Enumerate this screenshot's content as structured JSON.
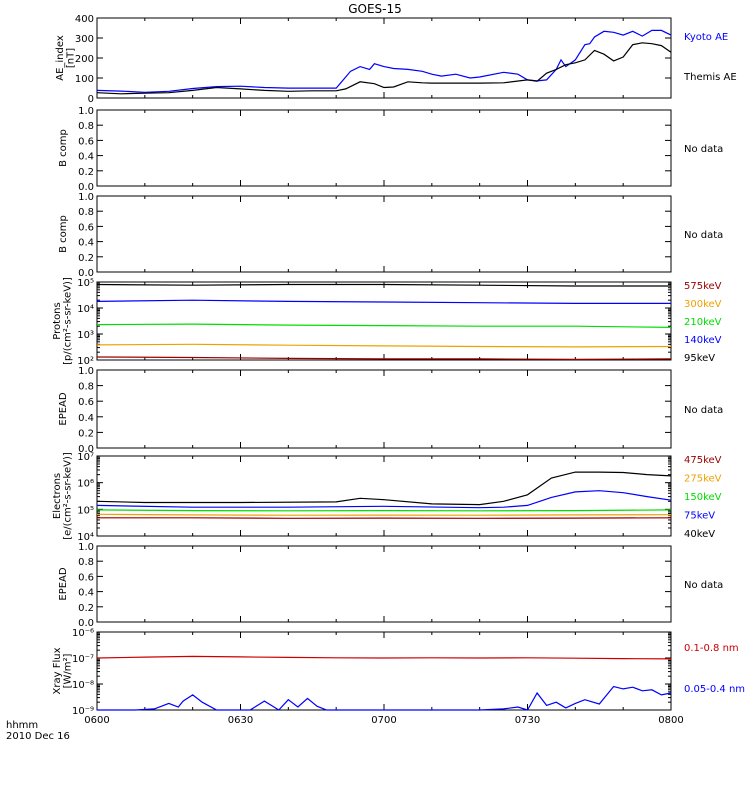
{
  "title": "GOES-15",
  "time_label": "hhmm",
  "date_label": "2010 Dec 16",
  "x_ticks": [
    "0600",
    "0630",
    "0700",
    "0730",
    "0800"
  ],
  "colors": {
    "black": "#000000",
    "blue": "#0000ff",
    "green": "#00dd00",
    "orange": "#eea200",
    "dark_red": "#990000",
    "red": "#cc0000"
  },
  "chart_data": [
    {
      "type": "line",
      "id": "ae",
      "ylabel": "AE_index [nT]",
      "ylim": [
        0,
        420
      ],
      "yscale": "linear",
      "yticks": [
        "0",
        "100",
        "200",
        "300",
        "400"
      ],
      "legend": [
        {
          "text": "Kyoto AE",
          "color": "blue"
        },
        {
          "text": "Themis AE",
          "color": "black"
        }
      ],
      "series": [
        {
          "name": "Kyoto AE",
          "color": "blue",
          "x": [
            0,
            5,
            10,
            15,
            20,
            25,
            30,
            35,
            40,
            45,
            50,
            52,
            53,
            55,
            57,
            58,
            60,
            62,
            65,
            68,
            70,
            72,
            75,
            78,
            80,
            85,
            88,
            90,
            92,
            94,
            96,
            97,
            98,
            100,
            102,
            103,
            104,
            106,
            108,
            110,
            112,
            114,
            116,
            118,
            120
          ],
          "y": [
            40,
            36,
            30,
            35,
            50,
            60,
            62,
            55,
            52,
            52,
            52,
            110,
            140,
            165,
            150,
            180,
            165,
            155,
            150,
            140,
            125,
            115,
            125,
            105,
            110,
            135,
            125,
            95,
            90,
            95,
            150,
            200,
            165,
            200,
            280,
            285,
            320,
            350,
            345,
            330,
            350,
            325,
            355,
            355,
            330
          ]
        },
        {
          "name": "Themis AE",
          "color": "black",
          "x": [
            0,
            5,
            10,
            15,
            20,
            25,
            30,
            35,
            40,
            45,
            50,
            52,
            55,
            58,
            60,
            62,
            65,
            68,
            70,
            75,
            80,
            85,
            90,
            92,
            94,
            96,
            98,
            100,
            102,
            104,
            106,
            108,
            110,
            112,
            114,
            116,
            118,
            120
          ],
          "y": [
            28,
            22,
            25,
            28,
            40,
            55,
            48,
            40,
            35,
            38,
            38,
            48,
            85,
            75,
            55,
            58,
            85,
            80,
            78,
            78,
            78,
            80,
            95,
            88,
            130,
            150,
            175,
            185,
            200,
            250,
            230,
            195,
            215,
            280,
            290,
            285,
            275,
            240
          ]
        }
      ]
    },
    {
      "type": "line",
      "id": "bcomp1",
      "ylabel": "B comp",
      "ylim": [
        0,
        1
      ],
      "yticks": [
        "0.0",
        "0.2",
        "0.4",
        "0.6",
        "0.8",
        "1.0"
      ],
      "legend": [
        {
          "text": "No data",
          "color": "black"
        }
      ],
      "series": []
    },
    {
      "type": "line",
      "id": "bcomp2",
      "ylabel": "B comp",
      "ylim": [
        0,
        1
      ],
      "yticks": [
        "0.0",
        "0.2",
        "0.4",
        "0.6",
        "0.8",
        "1.0"
      ],
      "legend": [
        {
          "text": "No data",
          "color": "black"
        }
      ],
      "series": []
    },
    {
      "type": "line",
      "id": "protons",
      "ylabel": "Protons [p/(cm²-s-sr-keV)]",
      "yscale": "log",
      "ylim": [
        100,
        100000
      ],
      "yticks": [
        "10²",
        "10³",
        "10⁴",
        "10⁵"
      ],
      "legend": [
        {
          "text": "575keV",
          "color": "dark_red"
        },
        {
          "text": "300keV",
          "color": "orange"
        },
        {
          "text": "210keV",
          "color": "green"
        },
        {
          "text": "140keV",
          "color": "blue"
        },
        {
          "text": "95keV",
          "color": "black"
        }
      ],
      "series": [
        {
          "name": "95keV",
          "color": "black",
          "x": [
            0,
            20,
            40,
            60,
            80,
            100,
            120
          ],
          "y": [
            80000,
            75000,
            80000,
            80000,
            75000,
            70000,
            70000
          ]
        },
        {
          "name": "140keV",
          "color": "blue",
          "x": [
            0,
            20,
            40,
            60,
            80,
            100,
            120
          ],
          "y": [
            18000,
            20000,
            18000,
            17000,
            16000,
            15000,
            15000
          ]
        },
        {
          "name": "210keV",
          "color": "green",
          "x": [
            0,
            20,
            40,
            60,
            80,
            100,
            120
          ],
          "y": [
            2300,
            2400,
            2200,
            2100,
            2000,
            2000,
            1800
          ]
        },
        {
          "name": "300keV",
          "color": "orange",
          "x": [
            0,
            20,
            40,
            60,
            80,
            100,
            120
          ],
          "y": [
            380,
            400,
            370,
            350,
            330,
            320,
            330
          ]
        },
        {
          "name": "575keV",
          "color": "dark_red",
          "x": [
            0,
            20,
            40,
            60,
            80,
            100,
            120
          ],
          "y": [
            130,
            125,
            115,
            110,
            110,
            105,
            110
          ]
        }
      ]
    },
    {
      "type": "line",
      "id": "epead1",
      "ylabel": "EPEAD",
      "ylim": [
        0,
        1
      ],
      "yticks": [
        "0.0",
        "0.2",
        "0.4",
        "0.6",
        "0.8",
        "1.0"
      ],
      "legend": [
        {
          "text": "No data",
          "color": "black"
        }
      ],
      "series": []
    },
    {
      "type": "line",
      "id": "electrons",
      "ylabel": "Electrons [e/(cm²-s-sr-keV)]",
      "yscale": "log",
      "ylim": [
        10000,
        10000000
      ],
      "yticks": [
        "10⁴",
        "10⁵",
        "10⁶",
        "10⁷"
      ],
      "legend": [
        {
          "text": "475keV",
          "color": "dark_red"
        },
        {
          "text": "275keV",
          "color": "orange"
        },
        {
          "text": "150keV",
          "color": "green"
        },
        {
          "text": "75keV",
          "color": "blue"
        },
        {
          "text": "40keV",
          "color": "black"
        }
      ],
      "series": [
        {
          "name": "40keV",
          "color": "black",
          "x": [
            0,
            10,
            30,
            50,
            55,
            60,
            70,
            80,
            85,
            90,
            95,
            100,
            105,
            110,
            115,
            120
          ],
          "y": [
            200000,
            180000,
            180000,
            190000,
            260000,
            230000,
            160000,
            150000,
            200000,
            350000,
            1500000,
            2500000,
            2500000,
            2400000,
            2000000,
            1800000
          ]
        },
        {
          "name": "75keV",
          "color": "blue",
          "x": [
            0,
            20,
            40,
            60,
            80,
            85,
            90,
            95,
            100,
            105,
            110,
            115,
            120
          ],
          "y": [
            140000,
            120000,
            120000,
            130000,
            115000,
            120000,
            140000,
            280000,
            450000,
            500000,
            420000,
            300000,
            220000
          ]
        },
        {
          "name": "150keV",
          "color": "green",
          "x": [
            0,
            20,
            40,
            60,
            80,
            100,
            120
          ],
          "y": [
            95000,
            90000,
            88000,
            90000,
            88000,
            90000,
            95000
          ]
        },
        {
          "name": "275keV",
          "color": "orange",
          "x": [
            0,
            20,
            40,
            60,
            80,
            100,
            120
          ],
          "y": [
            65000,
            62000,
            60000,
            61000,
            60000,
            62000,
            63000
          ]
        },
        {
          "name": "475keV",
          "color": "dark_red",
          "x": [
            0,
            20,
            40,
            60,
            80,
            100,
            120
          ],
          "y": [
            48000,
            48000,
            46000,
            47000,
            46000,
            47000,
            48000
          ]
        }
      ]
    },
    {
      "type": "line",
      "id": "epead2",
      "ylabel": "EPEAD",
      "ylim": [
        0,
        1
      ],
      "yticks": [
        "0.0",
        "0.2",
        "0.4",
        "0.6",
        "0.8",
        "1.0"
      ],
      "legend": [
        {
          "text": "No data",
          "color": "black"
        }
      ],
      "series": []
    },
    {
      "type": "line",
      "id": "xray",
      "ylabel": "Xray Flux [W/m²]",
      "yscale": "log",
      "ylim": [
        1e-09,
        1e-06
      ],
      "yticks": [
        "10⁻⁹",
        "10⁻⁸",
        "10⁻⁷",
        "10⁻⁶"
      ],
      "legend": [
        {
          "text": "0.1-0.8 nm",
          "color": "red"
        },
        {
          "text": "0.05-0.4 nm",
          "color": "blue"
        }
      ],
      "series": [
        {
          "name": "0.1-0.8 nm",
          "color": "red",
          "x": [
            0,
            10,
            20,
            30,
            40,
            50,
            60,
            70,
            80,
            90,
            100,
            110,
            120
          ],
          "y": [
            1e-07,
            1.08e-07,
            1.15e-07,
            1.1e-07,
            1.05e-07,
            1.02e-07,
            1e-07,
            1.02e-07,
            1e-07,
            1.02e-07,
            9.8e-08,
            9.5e-08,
            9.2e-08
          ]
        },
        {
          "name": "0.05-0.4 nm",
          "color": "blue",
          "x": [
            0,
            8,
            12,
            15,
            17,
            18,
            20,
            22,
            25,
            28,
            30,
            32,
            35,
            38,
            40,
            42,
            44,
            46,
            48,
            50,
            55,
            60,
            62,
            65,
            70,
            80,
            85,
            88,
            90,
            92,
            94,
            96,
            98,
            100,
            102,
            105,
            108,
            110,
            112,
            114,
            116,
            118,
            120
          ],
          "y": [
            1e-09,
            1e-09,
            1.1e-09,
            1.8e-09,
            1.3e-09,
            2.2e-09,
            3.8e-09,
            2e-09,
            1e-09,
            1e-09,
            1e-09,
            1e-09,
            2.2e-09,
            1e-09,
            2.5e-09,
            1.3e-09,
            2.8e-09,
            1.4e-09,
            1e-09,
            1e-09,
            1e-09,
            1e-09,
            1e-09,
            1e-09,
            1e-09,
            1e-09,
            1.1e-09,
            1.3e-09,
            1e-09,
            4.5e-09,
            1.5e-09,
            2e-09,
            1.2e-09,
            1.8e-09,
            2.5e-09,
            1.7e-09,
            8e-09,
            6.5e-09,
            7.5e-09,
            5.5e-09,
            6e-09,
            3.8e-09,
            4.5e-09
          ]
        }
      ]
    }
  ]
}
